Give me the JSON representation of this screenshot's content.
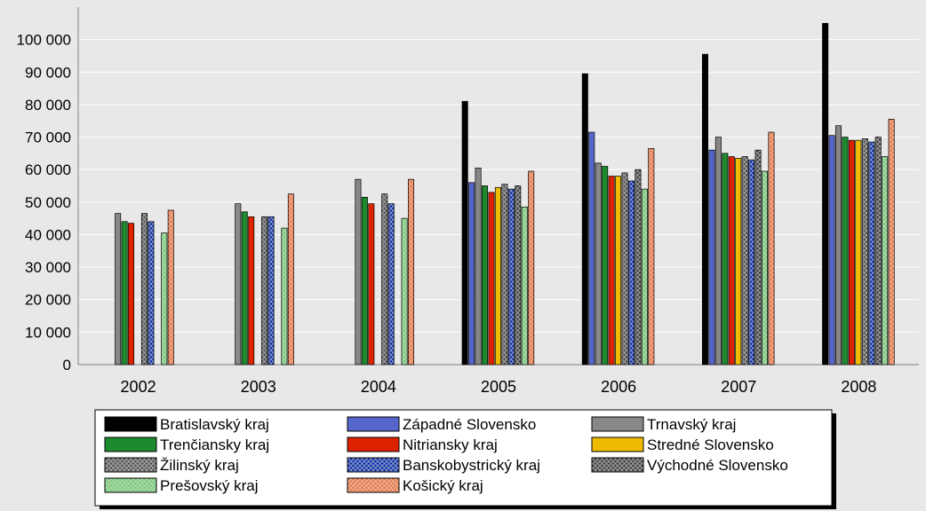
{
  "chart_data": {
    "type": "bar",
    "title": "",
    "xlabel": "",
    "ylabel": "",
    "ylim": [
      0,
      110000
    ],
    "yticks": [
      0,
      10000,
      20000,
      30000,
      40000,
      50000,
      60000,
      70000,
      80000,
      90000,
      100000
    ],
    "ytick_labels": [
      "0",
      "10 000",
      "20 000",
      "30 000",
      "40 000",
      "50 000",
      "60 000",
      "70 000",
      "80 000",
      "90 000",
      "100 000"
    ],
    "grid": true,
    "legend_position": "bottom",
    "categories": [
      "2002",
      "2003",
      "2004",
      "2005",
      "2006",
      "2007",
      "2008"
    ],
    "series": [
      {
        "name": "Bratislavský kraj",
        "color": "#000000",
        "pattern": "solid",
        "values": [
          null,
          null,
          null,
          81000,
          89500,
          95500,
          105000
        ]
      },
      {
        "name": "Západné Slovensko",
        "color": "#5566cc",
        "pattern": "solid",
        "values": [
          null,
          null,
          null,
          56000,
          71500,
          66000,
          70500
        ]
      },
      {
        "name": "Trnavský kraj",
        "color": "#888888",
        "pattern": "solid",
        "values": [
          46500,
          49500,
          57000,
          60500,
          62000,
          70000,
          73500
        ]
      },
      {
        "name": "Trenčiansky kraj",
        "color": "#1e8a2e",
        "pattern": "solid",
        "values": [
          44000,
          47000,
          51500,
          55000,
          61000,
          65000,
          70000
        ]
      },
      {
        "name": "Nitriansky kraj",
        "color": "#dd2200",
        "pattern": "solid",
        "values": [
          43500,
          45500,
          49500,
          53000,
          58000,
          64000,
          69000
        ]
      },
      {
        "name": "Stredné Slovensko",
        "color": "#eebb00",
        "pattern": "solid",
        "values": [
          null,
          null,
          null,
          54500,
          58000,
          63500,
          69000
        ]
      },
      {
        "name": "Žilinský kraj",
        "color": "#555555",
        "pattern": "cross",
        "values": [
          46500,
          45500,
          52500,
          55500,
          59000,
          64000,
          69500
        ]
      },
      {
        "name": "Banskobystrický kraj",
        "color": "#1133aa",
        "pattern": "cross",
        "values": [
          44000,
          45500,
          49500,
          54000,
          56500,
          63000,
          68500
        ]
      },
      {
        "name": "Východné Slovensko",
        "color": "#444444",
        "pattern": "cross",
        "values": [
          null,
          null,
          null,
          55000,
          60000,
          66000,
          70000
        ]
      },
      {
        "name": "Prešovský kraj",
        "color": "#77cc77",
        "pattern": "cross",
        "values": [
          40500,
          42000,
          45000,
          48500,
          54000,
          59500,
          64000
        ]
      },
      {
        "name": "Košický kraj",
        "color": "#ee7744",
        "pattern": "cross",
        "values": [
          47500,
          52500,
          57000,
          59500,
          66500,
          71500,
          75500
        ]
      }
    ]
  }
}
